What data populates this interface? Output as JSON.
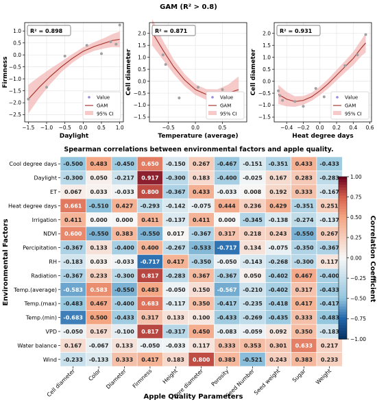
{
  "figure_title": "GAM (R² > 0.8)",
  "legend_labels": {
    "value": "Value",
    "gam": "GAM",
    "ci": "95% CI"
  },
  "colors": {
    "gam_line": "#a93a32",
    "ci_band": "#f2a6a6",
    "points": "#a0a0a0",
    "legend_value_marker": "#9b8ad8"
  },
  "chart_data": [
    {
      "type": "scatter",
      "panel": "gam-daylight",
      "r2_label": "R² = 0.898",
      "xlabel": "Daylight",
      "ylabel": "Firmness",
      "xlim": [
        -1.6,
        1.1
      ],
      "ylim": [
        -2.8,
        1.35
      ],
      "xticks": [
        -1.5,
        -1.0,
        -0.5,
        0.0,
        0.5,
        1.0
      ],
      "xtick_labels": [
        "−1.5",
        "−1.0",
        "−0.5",
        "0.0",
        "0.5",
        "1.0"
      ],
      "yticks": [
        1.0,
        0.5,
        0.0,
        -0.5,
        -1.0,
        -1.5,
        -2.0,
        -2.5
      ],
      "ytick_labels": [
        "1.0",
        "0.5",
        "0.0",
        "−0.5",
        "−1.0",
        "−1.5",
        "−2.0",
        "−2.5"
      ],
      "points": [
        [
          -1.5,
          -1.85
        ],
        [
          -1.0,
          -1.35
        ],
        [
          -0.5,
          -0.05
        ],
        [
          0.1,
          0.4
        ],
        [
          0.5,
          0.05
        ],
        [
          0.75,
          0.55
        ],
        [
          0.9,
          0.45
        ],
        [
          1.0,
          1.25
        ]
      ],
      "curve": [
        [
          -1.5,
          -1.85
        ],
        [
          -1.2,
          -1.35
        ],
        [
          -0.9,
          -0.9
        ],
        [
          -0.6,
          -0.5
        ],
        [
          -0.3,
          -0.15
        ],
        [
          0.0,
          0.15
        ],
        [
          0.3,
          0.35
        ],
        [
          0.6,
          0.5
        ],
        [
          0.8,
          0.6
        ],
        [
          1.0,
          0.65
        ]
      ],
      "ci_half_width": [
        0.6,
        0.45,
        0.32,
        0.22,
        0.18,
        0.17,
        0.18,
        0.22,
        0.27,
        0.33
      ]
    },
    {
      "type": "scatter",
      "panel": "gam-temp-average",
      "r2_label": "R² = 0.871",
      "xlabel": "Temperature (average)",
      "ylabel": "Cell diameter",
      "xlim": [
        -0.85,
        0.95
      ],
      "ylim": [
        -1.7,
        2.45
      ],
      "xticks": [
        -0.5,
        0.0,
        0.5
      ],
      "xtick_labels": [
        "−0.5",
        "0.0",
        "0.5"
      ],
      "yticks": [
        2.0,
        1.5,
        1.0,
        0.5,
        0.0,
        -0.5,
        -1.0,
        -1.5
      ],
      "ytick_labels": [
        "2.0",
        "1.5",
        "1.0",
        "0.5",
        "0.0",
        "−0.5",
        "−1.0",
        "−1.5"
      ],
      "points": [
        [
          -0.75,
          2.0
        ],
        [
          -0.6,
          1.1
        ],
        [
          -0.55,
          0.7
        ],
        [
          -0.3,
          -0.7
        ],
        [
          0.05,
          -0.25
        ],
        [
          0.5,
          -0.35
        ],
        [
          0.65,
          -0.65
        ]
      ],
      "curve": [
        [
          -0.8,
          2.05
        ],
        [
          -0.6,
          1.3
        ],
        [
          -0.4,
          0.6
        ],
        [
          -0.2,
          0.05
        ],
        [
          0.0,
          -0.35
        ],
        [
          0.2,
          -0.55
        ],
        [
          0.4,
          -0.6
        ],
        [
          0.6,
          -0.5
        ],
        [
          0.8,
          -0.35
        ]
      ],
      "ci_half_width": [
        0.55,
        0.4,
        0.3,
        0.25,
        0.22,
        0.22,
        0.26,
        0.35,
        0.55
      ]
    },
    {
      "type": "scatter",
      "panel": "gam-heat-degree-days",
      "r2_label": "R² = 0.931",
      "xlabel": "Heat degree days",
      "ylabel": "Cell diameter",
      "xlim": [
        -0.55,
        0.62
      ],
      "ylim": [
        -1.7,
        2.45
      ],
      "xticks": [
        -0.4,
        -0.2,
        0.0,
        0.2,
        0.4,
        0.6
      ],
      "xtick_labels": [
        "−0.4",
        "−0.2",
        "0.0",
        "0.2",
        "0.4",
        "0.6"
      ],
      "yticks": [
        2.0,
        1.5,
        1.0,
        0.5,
        0.0,
        -0.5,
        -1.0,
        -1.5
      ],
      "ytick_labels": [
        "2.0",
        "1.5",
        "1.0",
        "0.5",
        "0.0",
        "−0.5",
        "−1.0",
        "−1.5"
      ],
      "points": [
        [
          -0.5,
          -0.4
        ],
        [
          -0.48,
          -0.6
        ],
        [
          -0.45,
          -0.8
        ],
        [
          -0.3,
          -0.85
        ],
        [
          -0.2,
          -1.05
        ],
        [
          -0.05,
          -0.3
        ],
        [
          0.05,
          -0.65
        ],
        [
          0.3,
          0.65
        ],
        [
          0.45,
          1.1
        ],
        [
          0.55,
          1.95
        ]
      ],
      "curve": [
        [
          -0.5,
          -0.55
        ],
        [
          -0.4,
          -0.75
        ],
        [
          -0.3,
          -0.85
        ],
        [
          -0.2,
          -0.8
        ],
        [
          -0.1,
          -0.65
        ],
        [
          0.0,
          -0.4
        ],
        [
          0.1,
          -0.1
        ],
        [
          0.2,
          0.25
        ],
        [
          0.3,
          0.6
        ],
        [
          0.4,
          0.95
        ],
        [
          0.5,
          1.4
        ],
        [
          0.55,
          1.6
        ]
      ],
      "ci_half_width": [
        0.4,
        0.3,
        0.22,
        0.18,
        0.17,
        0.18,
        0.2,
        0.22,
        0.24,
        0.28,
        0.34,
        0.4
      ]
    },
    {
      "type": "heatmap",
      "panel": "spearman-heatmap",
      "title": "Spearman correlations between environmental factors and apple quality.",
      "xlabel": "Apple Quality Parameters",
      "ylabel": "Environmental Factors",
      "colorbar_label": "Correlation Coefficient",
      "vmin": -1.0,
      "vmax": 1.0,
      "colorbar_ticks": [
        1.0,
        0.75,
        0.5,
        0.25,
        0.0,
        -0.25,
        -0.5,
        -0.75,
        -1.0
      ],
      "colorbar_tick_labels": [
        "1.00",
        "0.75",
        "0.50",
        "0.25",
        "0.00",
        "−0.25",
        "−0.50",
        "−0.75",
        "−1.00"
      ],
      "rows": [
        "Cool degree days",
        "Daylight",
        "ET",
        "Heat degree days",
        "Irrigation",
        "NDVI",
        "Percipitation",
        "RH",
        "Radiation",
        "Temp.(average)",
        "Temp.(max)",
        "Temp.(min)",
        "VPD",
        "Water balance",
        "Wind"
      ],
      "columns": [
        "Cell diameter",
        "Color",
        "Diameter",
        "Firmness",
        "Height",
        "Pore diameter",
        "Porosity",
        "Seed Number",
        "Seed weight",
        "Sugar",
        "Weight"
      ],
      "values": [
        [
          -0.5,
          0.483,
          -0.45,
          0.65,
          -0.15,
          0.267,
          -0.467,
          -0.151,
          -0.351,
          0.433,
          -0.433
        ],
        [
          -0.3,
          0.05,
          -0.217,
          0.917,
          -0.3,
          0.183,
          -0.4,
          -0.025,
          0.167,
          0.283,
          -0.283
        ],
        [
          0.067,
          0.033,
          -0.033,
          0.8,
          -0.367,
          0.433,
          -0.033,
          0.008,
          0.192,
          0.333,
          -0.167
        ],
        [
          0.661,
          -0.51,
          0.427,
          -0.293,
          -0.142,
          -0.075,
          0.444,
          0.236,
          0.429,
          -0.351,
          0.251
        ],
        [
          0.411,
          0.0,
          0.0,
          0.411,
          -0.137,
          0.411,
          0.0,
          -0.345,
          -0.138,
          -0.274,
          -0.137
        ],
        [
          0.6,
          -0.55,
          0.383,
          -0.55,
          0.017,
          -0.367,
          0.317,
          0.218,
          0.243,
          -0.55,
          0.267
        ],
        [
          -0.367,
          0.133,
          -0.4,
          0.4,
          -0.267,
          -0.533,
          -0.717,
          0.134,
          -0.075,
          -0.35,
          -0.367
        ],
        [
          -0.183,
          0.033,
          -0.033,
          -0.717,
          0.417,
          -0.35,
          -0.05,
          -0.143,
          -0.268,
          -0.3,
          0.117
        ],
        [
          -0.367,
          0.233,
          -0.3,
          0.817,
          -0.283,
          0.367,
          -0.367,
          0.05,
          -0.402,
          0.467,
          -0.4
        ],
        [
          -0.583,
          0.583,
          -0.55,
          0.483,
          -0.05,
          0.15,
          -0.567,
          -0.21,
          -0.402,
          0.317,
          -0.433
        ],
        [
          -0.483,
          0.467,
          -0.4,
          0.683,
          -0.117,
          0.35,
          -0.417,
          -0.235,
          -0.418,
          0.417,
          -0.417
        ],
        [
          -0.683,
          0.5,
          -0.433,
          0.317,
          0.133,
          0.1,
          -0.433,
          -0.269,
          -0.435,
          0.333,
          -0.483
        ],
        [
          -0.05,
          0.167,
          -0.1,
          0.817,
          -0.317,
          0.45,
          -0.083,
          -0.059,
          0.092,
          0.35,
          -0.183
        ],
        [
          0.167,
          -0.067,
          0.133,
          -0.05,
          -0.033,
          0.117,
          0.333,
          0.353,
          0.301,
          0.633,
          0.217
        ],
        [
          -0.233,
          -0.133,
          0.333,
          0.417,
          0.183,
          0.8,
          0.383,
          -0.521,
          0.243,
          0.383,
          0.233
        ]
      ]
    }
  ]
}
